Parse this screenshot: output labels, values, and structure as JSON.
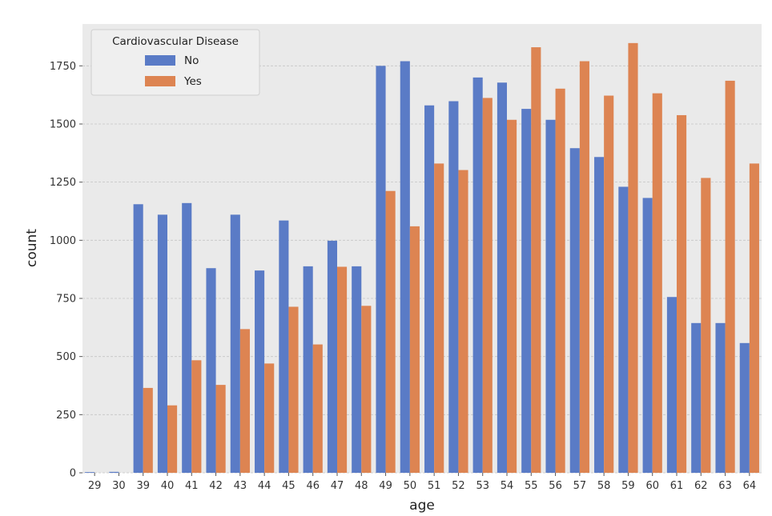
{
  "chart_data": {
    "type": "bar",
    "title": "",
    "xlabel": "age",
    "ylabel": "count",
    "ylim": [
      0,
      1930
    ],
    "yticks": [
      0,
      250,
      500,
      750,
      1000,
      1250,
      1500,
      1750
    ],
    "grid": true,
    "legend": {
      "title": "Cardiovascular Disease",
      "position": "top-left"
    },
    "categories": [
      "29",
      "30",
      "39",
      "40",
      "41",
      "42",
      "43",
      "44",
      "45",
      "46",
      "47",
      "48",
      "49",
      "50",
      "51",
      "52",
      "53",
      "54",
      "55",
      "56",
      "57",
      "58",
      "59",
      "60",
      "61",
      "62",
      "63",
      "64"
    ],
    "series": [
      {
        "name": "No",
        "color": "#5a7bc6",
        "values": [
          3,
          4,
          1155,
          1110,
          1160,
          880,
          1110,
          870,
          1085,
          888,
          998,
          888,
          1750,
          1770,
          1580,
          1598,
          1700,
          1678,
          1565,
          1518,
          1396,
          1358,
          1230,
          1182,
          756,
          644,
          644,
          558
        ]
      },
      {
        "name": "Yes",
        "color": "#dd8452",
        "values": [
          0,
          0,
          365,
          290,
          484,
          378,
          618,
          470,
          714,
          552,
          886,
          718,
          1212,
          1060,
          1330,
          1302,
          1612,
          1518,
          1830,
          1652,
          1770,
          1622,
          1848,
          1632,
          1538,
          1268,
          1686,
          1330
        ]
      }
    ]
  }
}
